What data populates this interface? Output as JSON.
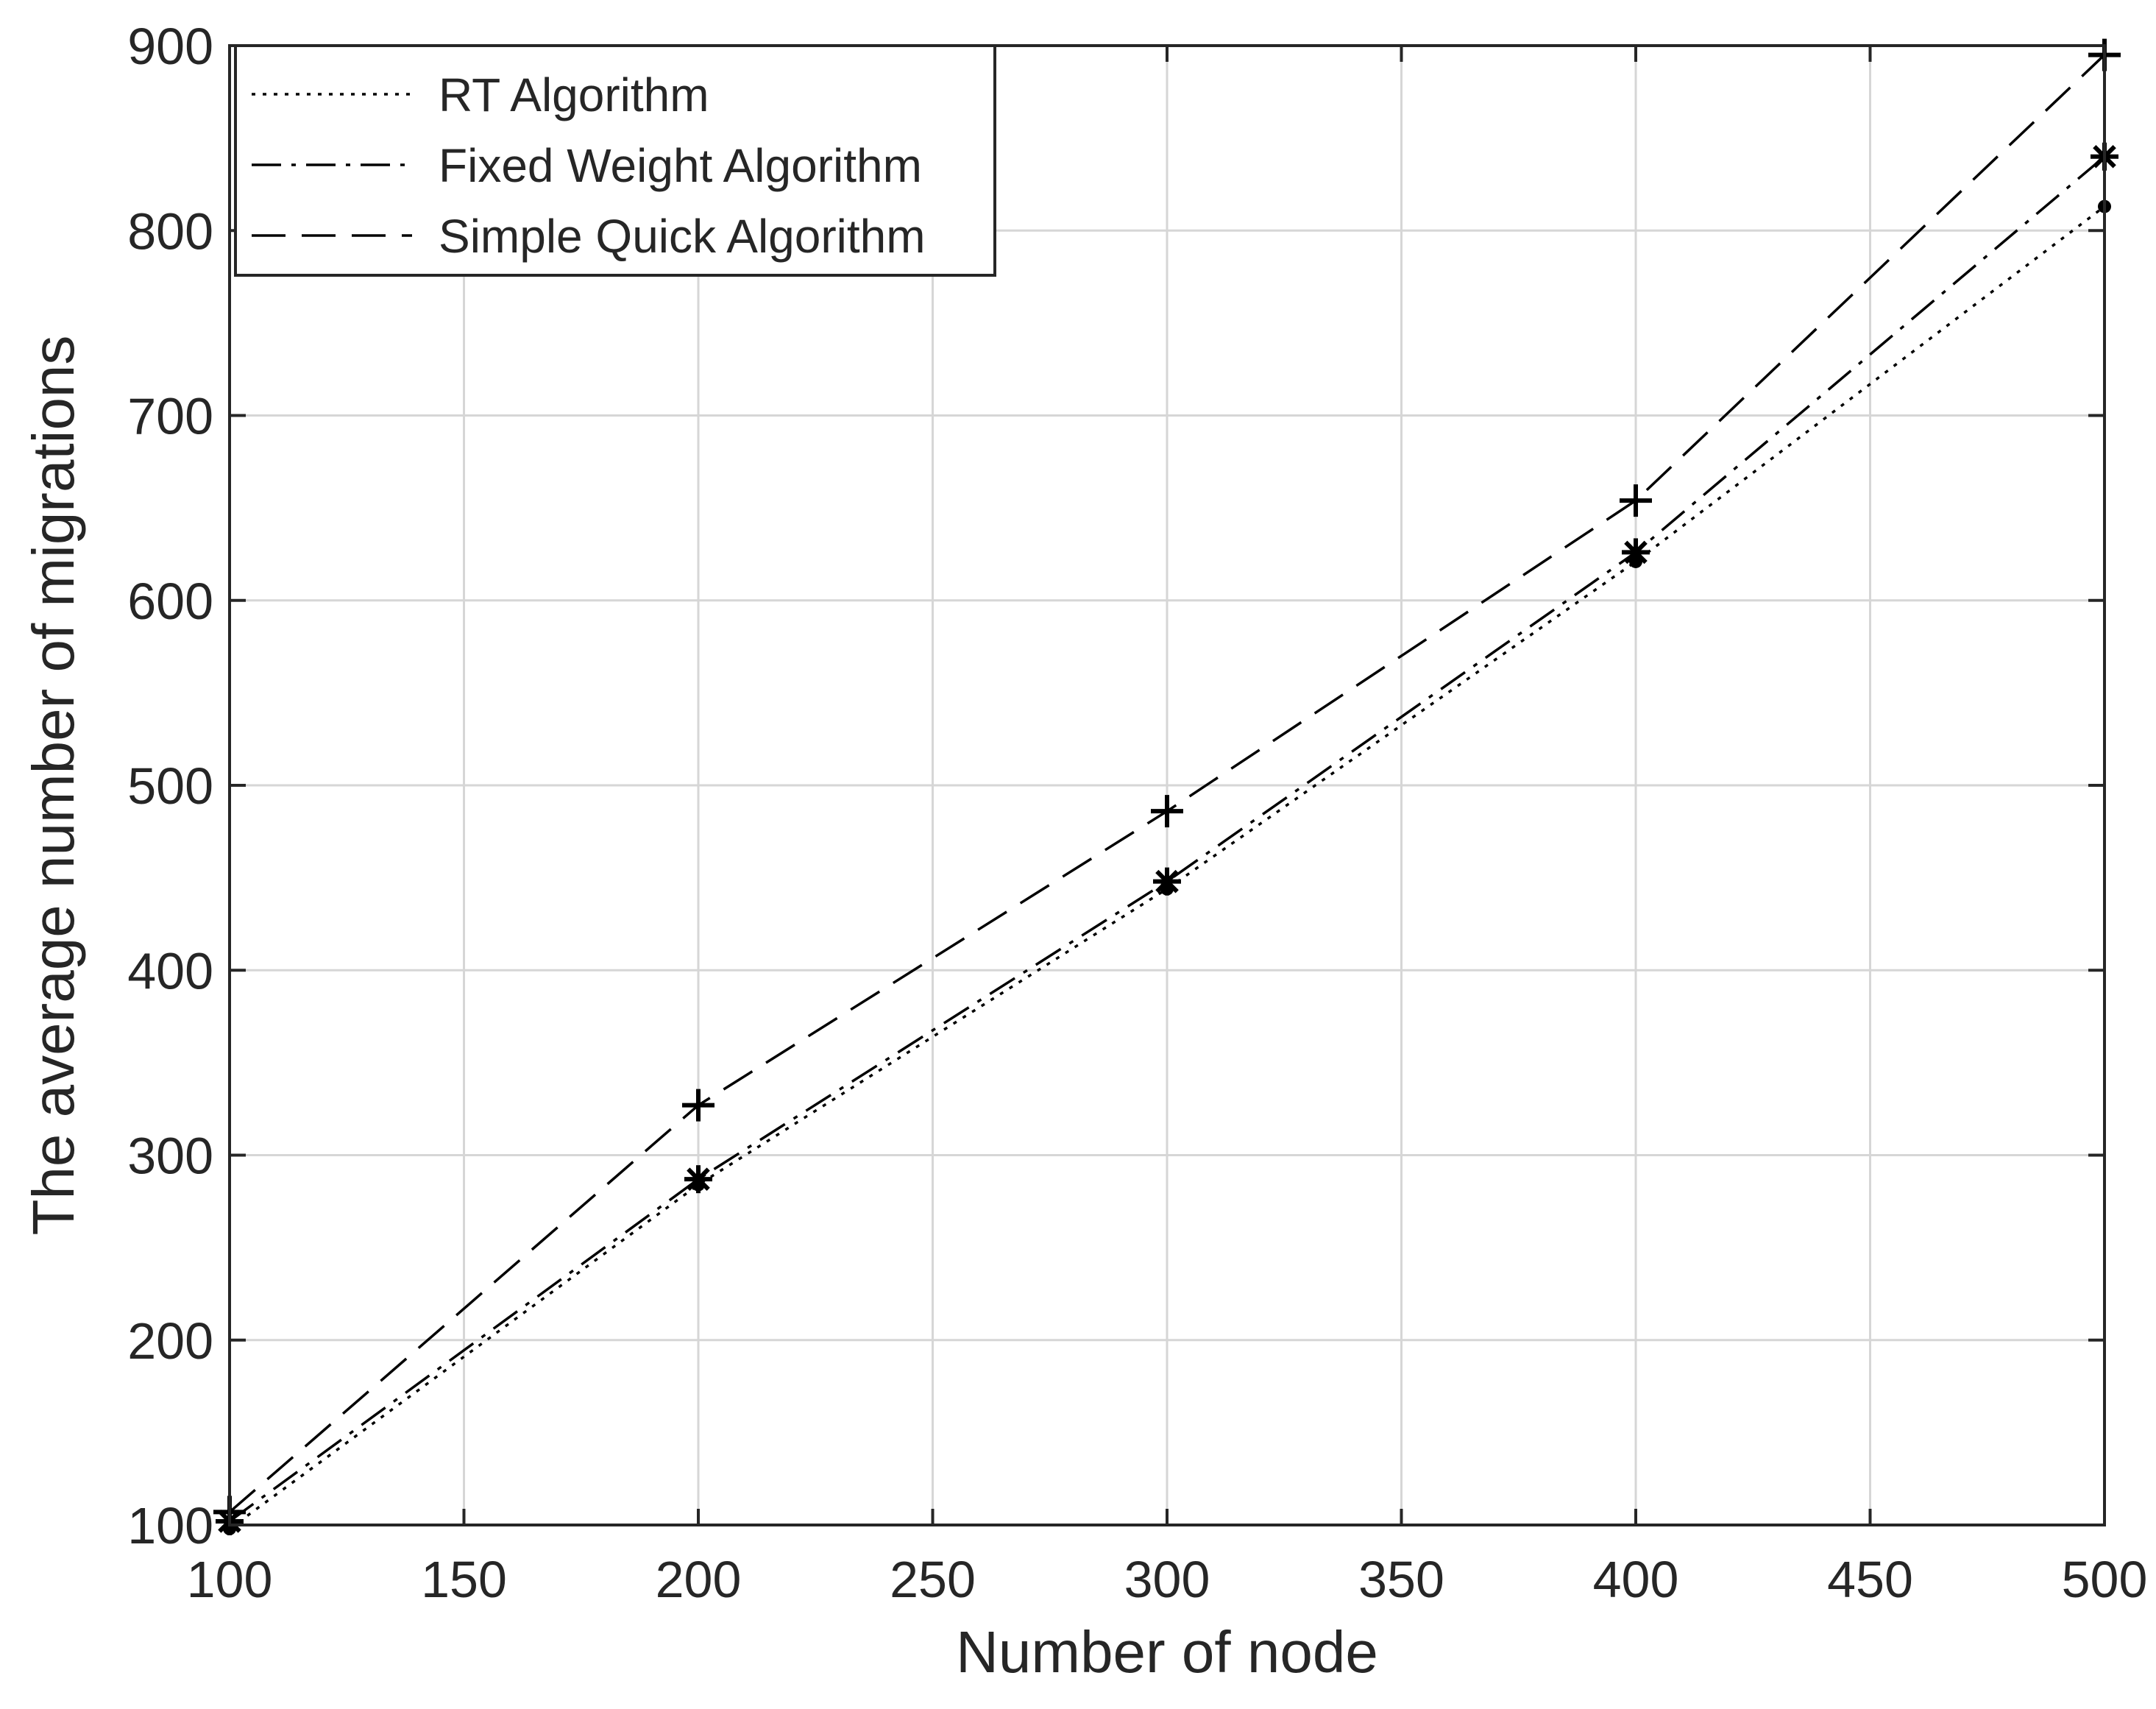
{
  "chart_data": {
    "type": "line",
    "xlabel": "Number of node",
    "ylabel": "The average number of migrations",
    "xlim": [
      100,
      500
    ],
    "ylim": [
      100,
      900
    ],
    "xticks": [
      100,
      150,
      200,
      250,
      300,
      350,
      400,
      450,
      500
    ],
    "yticks": [
      100,
      200,
      300,
      400,
      500,
      600,
      700,
      800,
      900
    ],
    "grid": true,
    "legend_position": "top-left",
    "x": [
      100,
      200,
      300,
      400,
      500
    ],
    "series": [
      {
        "name": "RT Algorithm",
        "values": [
          98,
          284,
          444,
          621,
          813
        ],
        "line_style": "dotted",
        "marker": "dot",
        "color": "#000000"
      },
      {
        "name": "Fixed Weight Algorithm",
        "values": [
          102,
          287,
          448,
          626,
          840
        ],
        "line_style": "dash-dot",
        "marker": "asterisk",
        "color": "#000000"
      },
      {
        "name": "Simple Quick Algorithm",
        "values": [
          107,
          327,
          486,
          654,
          895
        ],
        "line_style": "dashed",
        "marker": "plus",
        "color": "#000000"
      }
    ]
  }
}
